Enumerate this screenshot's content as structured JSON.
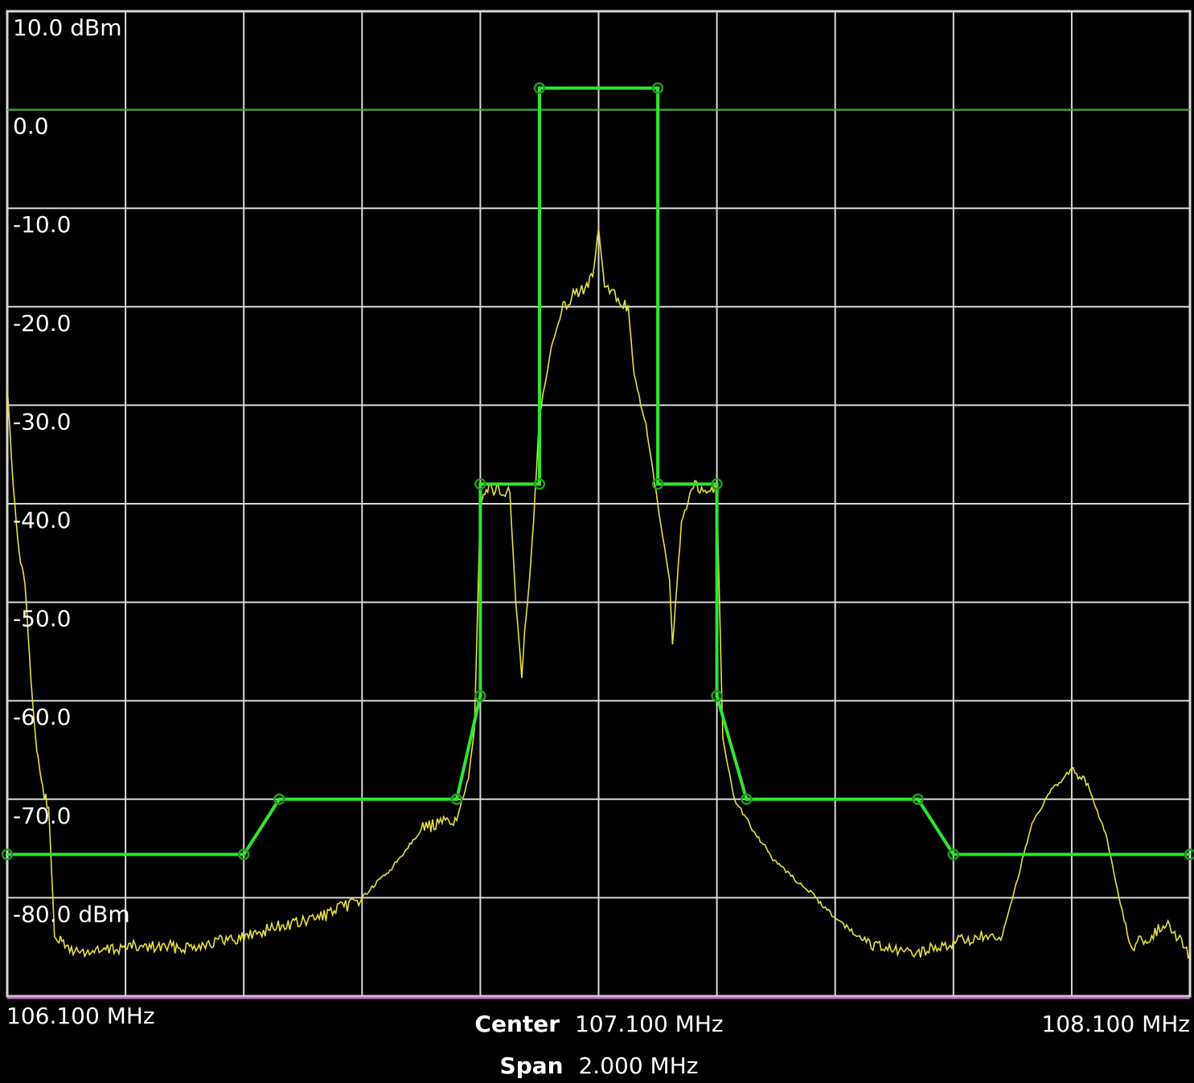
{
  "chart_data": {
    "type": "line",
    "title": "",
    "xlabel": "",
    "ylabel": "",
    "x_unit": "MHz",
    "y_unit": "dBm",
    "xlim": [
      106.1,
      108.1
    ],
    "ylim": [
      -90.0,
      10.0
    ],
    "grid": true,
    "y_tick_labels": [
      {
        "value": 10.0,
        "label": "10.0 dBm"
      },
      {
        "value": 0.0,
        "label": "0.0"
      },
      {
        "value": -10.0,
        "label": "-10.0"
      },
      {
        "value": -20.0,
        "label": "-20.0"
      },
      {
        "value": -30.0,
        "label": "-30.0"
      },
      {
        "value": -40.0,
        "label": "-40.0"
      },
      {
        "value": -50.0,
        "label": "-50.0"
      },
      {
        "value": -60.0,
        "label": "-60.0"
      },
      {
        "value": -70.0,
        "label": "-70.0"
      },
      {
        "value": -80.0,
        "label": "-80.0 dBm"
      }
    ],
    "x_start_label": "106.100 MHz",
    "x_stop_label": "108.100 MHz",
    "center": {
      "label": "Center",
      "value": "107.100 MHz"
    },
    "span": {
      "label": "Span",
      "value": "2.000 MHz"
    },
    "reference_line": {
      "y": 0.0,
      "color": "#2db52d"
    },
    "colors": {
      "background": "#000000",
      "grid": "#d8d8d8",
      "trace": "#e8e040",
      "mask": "#2ee62e",
      "baseline": "#c070c0"
    },
    "series": [
      {
        "type": "mask",
        "points": [
          [
            106.1,
            -75.6
          ],
          [
            106.5,
            -75.6
          ],
          [
            106.56,
            -70.0
          ],
          [
            106.86,
            -70.0
          ],
          [
            106.9,
            -59.5
          ],
          [
            106.9,
            -38.0
          ],
          [
            107.0,
            -38.0
          ],
          [
            107.0,
            2.2
          ],
          [
            107.2,
            2.2
          ],
          [
            107.2,
            -38.0
          ],
          [
            107.3,
            -38.0
          ],
          [
            107.3,
            -59.5
          ],
          [
            107.35,
            -70.0
          ],
          [
            107.64,
            -70.0
          ],
          [
            107.7,
            -75.6
          ],
          [
            108.1,
            -75.6
          ]
        ],
        "markers": [
          [
            106.1,
            -75.6
          ],
          [
            106.5,
            -75.6
          ],
          [
            106.56,
            -70.0
          ],
          [
            106.86,
            -70.0
          ],
          [
            106.9,
            -59.5
          ],
          [
            106.9,
            -38.0
          ],
          [
            107.0,
            -38.0
          ],
          [
            107.0,
            2.2
          ],
          [
            107.2,
            2.2
          ],
          [
            107.2,
            -38.0
          ],
          [
            107.3,
            -38.0
          ],
          [
            107.3,
            -59.5
          ],
          [
            107.35,
            -70.0
          ],
          [
            107.64,
            -70.0
          ],
          [
            107.7,
            -75.6
          ],
          [
            108.1,
            -75.6
          ]
        ]
      },
      {
        "type": "trace",
        "x": [
          106.1,
          106.11,
          106.12,
          106.13,
          106.14,
          106.15,
          106.16,
          106.17,
          106.18,
          106.19,
          106.2,
          106.22,
          106.25,
          106.3,
          106.4,
          106.5,
          106.55,
          106.6,
          106.65,
          106.7,
          106.75,
          106.8,
          106.83,
          106.86,
          106.88,
          106.89,
          106.9,
          106.905,
          106.92,
          106.95,
          106.96,
          106.97,
          106.975,
          106.98,
          106.99,
          107.0,
          107.02,
          107.04,
          107.06,
          107.08,
          107.09,
          107.1,
          107.11,
          107.13,
          107.15,
          107.16,
          107.18,
          107.2,
          107.22,
          107.225,
          107.24,
          107.26,
          107.28,
          107.3,
          107.31,
          107.33,
          107.36,
          107.4,
          107.45,
          107.5,
          107.55,
          107.6,
          107.65,
          107.7,
          107.75,
          107.78,
          107.8,
          107.83,
          107.86,
          107.9,
          107.93,
          107.96,
          107.98,
          108.0,
          108.03,
          108.06,
          108.08,
          108.1
        ],
        "y": [
          -28.0,
          -38.0,
          -45.0,
          -48.0,
          -58.0,
          -65.0,
          -69.0,
          -71.0,
          -83.5,
          -84.5,
          -85.0,
          -85.5,
          -85.5,
          -85.0,
          -85.0,
          -84.0,
          -83.0,
          -82.5,
          -81.5,
          -80.0,
          -77.0,
          -73.0,
          -72.5,
          -72.0,
          -68.0,
          -63.0,
          -40.0,
          -38.5,
          -38.5,
          -39.0,
          -50.0,
          -57.5,
          -53.0,
          -50.0,
          -42.0,
          -31.0,
          -24.0,
          -20.0,
          -18.5,
          -18.0,
          -17.0,
          -12.0,
          -18.0,
          -19.0,
          -20.0,
          -27.0,
          -32.0,
          -40.0,
          -48.0,
          -54.5,
          -42.0,
          -38.0,
          -38.5,
          -38.5,
          -64.0,
          -70.0,
          -73.0,
          -76.5,
          -79.0,
          -82.0,
          -84.5,
          -85.5,
          -85.5,
          -84.5,
          -84.0,
          -84.5,
          -80.0,
          -73.0,
          -69.5,
          -67.0,
          -69.0,
          -74.0,
          -80.0,
          -85.0,
          -84.0,
          -82.5,
          -84.0,
          -86.0
        ]
      }
    ]
  }
}
